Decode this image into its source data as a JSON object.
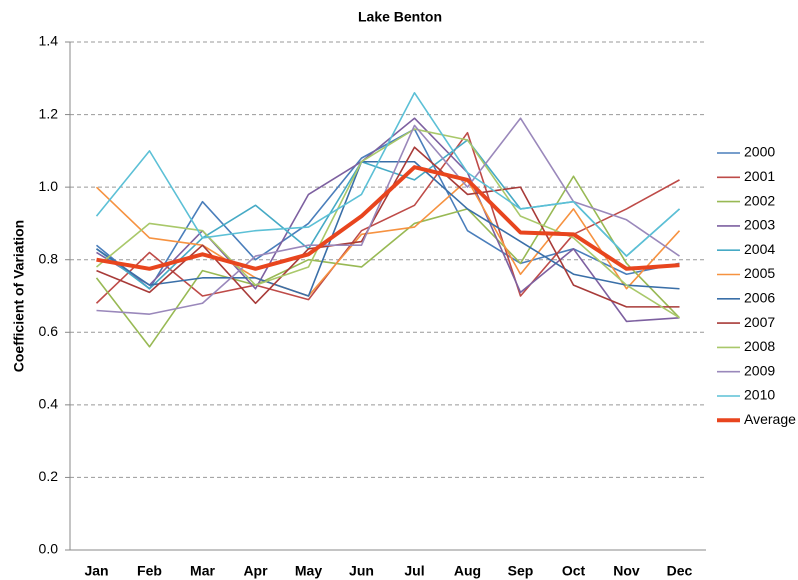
{
  "chart_data": {
    "type": "line",
    "title": "Lake Benton",
    "y_label": "Coefficient of Variation",
    "categories": [
      "Jan",
      "Feb",
      "Mar",
      "Apr",
      "May",
      "Jun",
      "Jul",
      "Aug",
      "Sep",
      "Oct",
      "Nov",
      "Dec"
    ],
    "ylim": [
      0,
      1.4
    ],
    "yticks": [
      {
        "value": 0,
        "label": "0.0"
      },
      0.2,
      0.4,
      0.6,
      0.8,
      {
        "value": 1,
        "label": "1.0"
      },
      1.2,
      1.4
    ],
    "grid": true,
    "legend": "right",
    "series": [
      {
        "name": "2000",
        "color": "#4a7ebb",
        "values": [
          0.84,
          0.72,
          0.96,
          0.8,
          0.9,
          1.08,
          1.16,
          0.88,
          0.79,
          0.83,
          0.76,
          0.79
        ]
      },
      {
        "name": "2001",
        "color": "#be4b48",
        "values": [
          0.68,
          0.82,
          0.7,
          0.73,
          0.69,
          0.88,
          0.95,
          1.15,
          0.7,
          0.87,
          0.94,
          1.02
        ]
      },
      {
        "name": "2002",
        "color": "#98b954",
        "values": [
          0.75,
          0.56,
          0.77,
          0.73,
          0.8,
          0.78,
          0.9,
          0.94,
          0.79,
          1.03,
          0.79,
          0.64
        ]
      },
      {
        "name": "2003",
        "color": "#7d60a0",
        "values": [
          0.82,
          0.73,
          0.88,
          0.72,
          0.98,
          1.07,
          1.19,
          1.04,
          0.71,
          0.83,
          0.63,
          0.64
        ]
      },
      {
        "name": "2004",
        "color": "#46aac5",
        "values": [
          0.83,
          0.72,
          0.86,
          0.95,
          0.83,
          1.07,
          1.02,
          1.13,
          0.94,
          0.96,
          0.81,
          0.94
        ]
      },
      {
        "name": "2005",
        "color": "#f69240",
        "values": [
          1.0,
          0.86,
          0.84,
          0.75,
          0.7,
          0.87,
          0.89,
          1.02,
          0.76,
          0.94,
          0.72,
          0.88
        ]
      },
      {
        "name": "2006",
        "color": "#3a6fa8",
        "values": [
          0.83,
          0.73,
          0.75,
          0.75,
          0.7,
          1.07,
          1.07,
          0.94,
          0.85,
          0.76,
          0.73,
          0.72
        ]
      },
      {
        "name": "2007",
        "color": "#a83b39",
        "values": [
          0.77,
          0.71,
          0.84,
          0.68,
          0.83,
          0.85,
          1.11,
          0.98,
          1.0,
          0.73,
          0.67,
          0.67
        ]
      },
      {
        "name": "2008",
        "color": "#a9c86a",
        "values": [
          0.78,
          0.9,
          0.88,
          0.73,
          0.78,
          1.07,
          1.16,
          1.13,
          0.92,
          0.86,
          0.73,
          0.64
        ]
      },
      {
        "name": "2009",
        "color": "#9a88bb",
        "values": [
          0.66,
          0.65,
          0.68,
          0.81,
          0.84,
          0.84,
          1.17,
          1.0,
          1.19,
          0.96,
          0.91,
          0.81
        ]
      },
      {
        "name": "2010",
        "color": "#5cc0d6",
        "values": [
          0.92,
          1.1,
          0.86,
          0.88,
          0.89,
          0.98,
          1.26,
          1.04,
          0.94,
          0.96,
          0.81,
          0.94
        ]
      },
      {
        "name": "Average",
        "color": "#e8451e",
        "values": [
          0.8,
          0.775,
          0.815,
          0.775,
          0.815,
          0.92,
          1.055,
          1.02,
          0.875,
          0.87,
          0.775,
          0.785
        ]
      }
    ]
  }
}
